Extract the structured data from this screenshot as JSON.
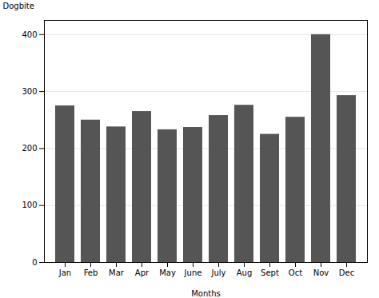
{
  "chart_data": {
    "type": "bar",
    "categories": [
      "Jan",
      "Feb",
      "Mar",
      "Apr",
      "May",
      "June",
      "July",
      "Aug",
      "Sept",
      "Oct",
      "Nov",
      "Dec"
    ],
    "values": [
      275,
      250,
      238,
      265,
      233,
      237,
      258,
      276,
      225,
      255,
      400,
      293
    ],
    "color": "#555555",
    "xlabel": "Months",
    "ylabel": "Dogbite",
    "ylim": [
      0,
      425
    ],
    "yticks": [
      0,
      100,
      200,
      300,
      400
    ],
    "grid": true
  }
}
